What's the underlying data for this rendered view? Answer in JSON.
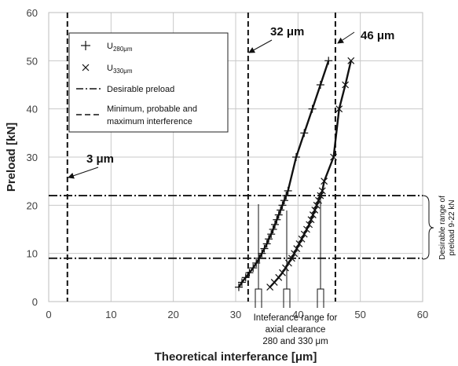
{
  "chart_data": {
    "type": "scatter",
    "xlabel": "Theoretical interferance [μm]",
    "ylabel": "Preload [kN]",
    "xlim": [
      0,
      60
    ],
    "ylim": [
      0,
      60
    ],
    "x_ticks": [
      "0",
      "10",
      "20",
      "30",
      "40",
      "50",
      "60"
    ],
    "y_ticks": [
      "0",
      "10",
      "20",
      "30",
      "40",
      "50",
      "60"
    ],
    "grid": "vertical and horizontal major gridlines",
    "legend_position": "top-left",
    "legend": {
      "u280_base": "U",
      "u280_sub": "280μm",
      "u330_base": "U",
      "u330_sub": "330μm",
      "desirable": "Desirable preload",
      "interf_line1": "Minimum, probable and",
      "interf_line2": "maximum interference"
    },
    "series": [
      {
        "name": "U280μm",
        "marker": "plus",
        "x": [
          30.5,
          31.0,
          31.6,
          32.2,
          32.8,
          33.3,
          33.8,
          34.2,
          34.6,
          35.0,
          35.3,
          35.7,
          36.0,
          36.3,
          36.6,
          36.9,
          37.2,
          37.5,
          37.8,
          38.1,
          38.4,
          39.7,
          41.0,
          42.3,
          43.6,
          44.9
        ],
        "y": [
          3,
          4,
          5,
          6,
          7,
          8,
          9,
          10,
          11,
          12,
          13,
          14,
          15,
          16,
          17,
          18,
          19,
          20,
          21,
          22,
          23,
          30,
          35,
          40,
          45,
          50
        ]
      },
      {
        "name": "U330μm",
        "marker": "cross",
        "x": [
          35.5,
          36.2,
          36.9,
          37.5,
          38.0,
          38.5,
          39.0,
          39.4,
          39.8,
          40.2,
          40.6,
          41.0,
          41.4,
          41.8,
          42.1,
          42.4,
          42.7,
          43.0,
          43.3,
          43.6,
          43.9,
          44.2,
          45.7,
          46.6,
          47.6,
          48.5
        ],
        "y": [
          3,
          4,
          5,
          6,
          7,
          8,
          9,
          10,
          11,
          12,
          13,
          14,
          15,
          16,
          17,
          18,
          19,
          20,
          21,
          22,
          23,
          25,
          30,
          40,
          45,
          50
        ]
      }
    ],
    "interference_lines_x": [
      3,
      32,
      46
    ],
    "desirable_preload_y": [
      9,
      22
    ],
    "annotations": {
      "a3": "3 μm",
      "a32": "32 μm",
      "a46": "46 μm",
      "brace1": "Inteferance range for",
      "brace2": "axial clearance",
      "brace3": "280 and 330 μm",
      "side1": "Desirable range of",
      "side2": "preload 9-22 kN"
    }
  }
}
